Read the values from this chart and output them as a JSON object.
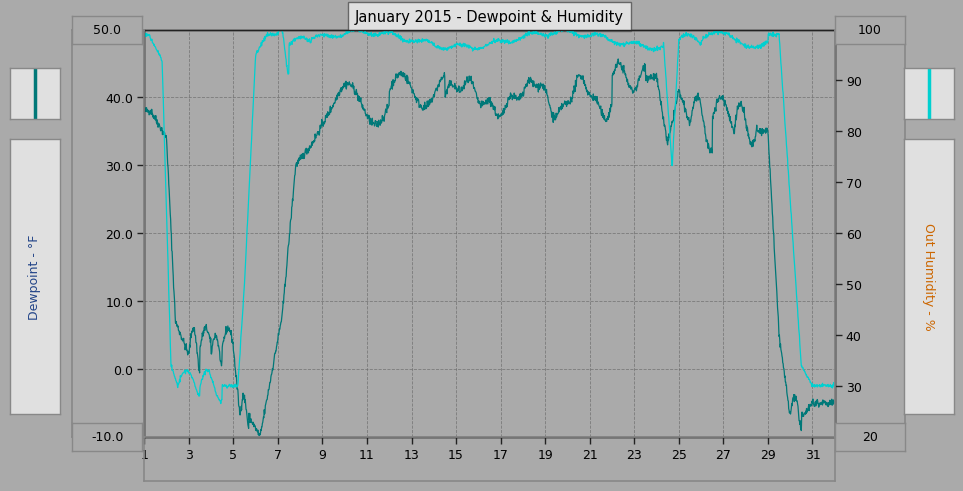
{
  "title": "January 2015 - Dewpoint & Humidity",
  "bg_color": "#aaaaaa",
  "plot_bg_color": "#aaaaaa",
  "dewpoint_color": "#007878",
  "humidity_color": "#00d0d0",
  "ylabel_left": "Dewpoint - °F",
  "ylabel_right": "Out Humidity - %",
  "ylim_left": [
    -10.0,
    50.0
  ],
  "ylim_right": [
    20,
    100
  ],
  "yticks_left": [
    -10.0,
    0.0,
    10.0,
    20.0,
    30.0,
    40.0,
    50.0
  ],
  "yticks_right": [
    20,
    30,
    40,
    50,
    60,
    70,
    80,
    90,
    100
  ],
  "xticks": [
    1,
    3,
    5,
    7,
    9,
    11,
    13,
    15,
    17,
    19,
    21,
    23,
    25,
    27,
    29,
    31
  ],
  "xlim": [
    1,
    32
  ],
  "grid_color": "#666666",
  "spine_color": "#222222",
  "box_face_color": "#e8e8e8",
  "box_edge_color": "#888888",
  "title_box_face": "#e0e0e0",
  "title_box_edge": "#666666",
  "swatch_box_face": "#e0e0e0",
  "swatch_box_edge": "#888888"
}
